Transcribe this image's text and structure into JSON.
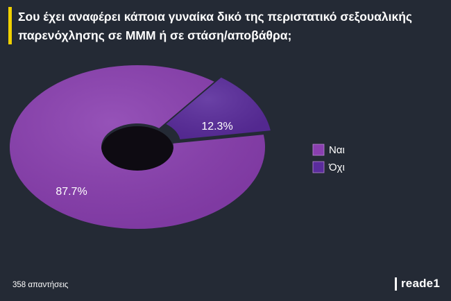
{
  "title": "Σου έχει αναφέρει κάποια γυναίκα δικό της περιστατικό σεξουαλικής παρενόχλησης σε ΜΜΜ ή σε στάση/αποβάθρα;",
  "footer": {
    "responses": "358 απαντήσεις",
    "brand": "reade1"
  },
  "colors": {
    "background": "#242a35",
    "accent": "#f0d000"
  },
  "chart_data": {
    "type": "pie",
    "style": "3d-donut",
    "categories": [
      "Ναι",
      "Όχι"
    ],
    "values": [
      87.7,
      12.3
    ],
    "labels": [
      "87.7%",
      "12.3%"
    ],
    "colors": [
      "#8a3fb0",
      "#5a2c9c"
    ],
    "legend_placement": "right"
  }
}
